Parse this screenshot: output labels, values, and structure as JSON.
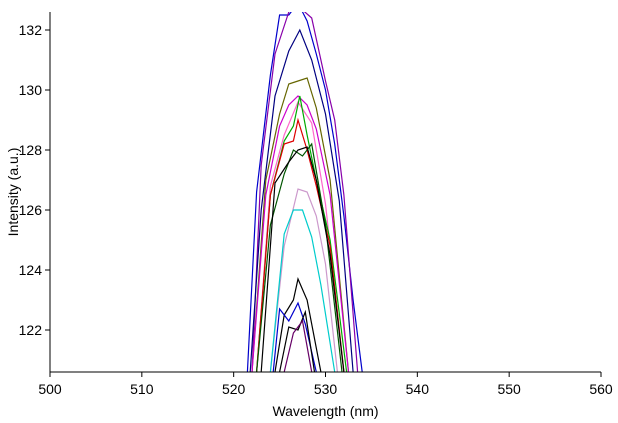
{
  "chart_data": {
    "type": "line",
    "title": "",
    "xlabel": "Wavelength (nm)",
    "ylabel": "Intensity (a.u.)",
    "xlim": [
      500,
      560
    ],
    "ylim": [
      120.6,
      132.6
    ],
    "xticks": [
      500,
      510,
      520,
      530,
      540,
      550,
      560
    ],
    "yticks": [
      122,
      124,
      126,
      128,
      130,
      132
    ],
    "grid": false,
    "legend": "none",
    "series": [
      {
        "color": "#0000cc",
        "x": [
          521.5,
          522.5,
          524.0,
          525.0,
          526.0,
          527.0,
          528.0,
          529.0,
          530.0,
          531.0,
          532.0,
          533.0,
          534.0
        ],
        "y": [
          120.6,
          126.6,
          130.5,
          132.5,
          132.5,
          132.9,
          132.3,
          131.2,
          130.0,
          128.2,
          125.8,
          123.0,
          120.6
        ]
      },
      {
        "color": "#8800aa",
        "x": [
          522.0,
          523.0,
          524.5,
          526.0,
          527.0,
          528.5,
          530.0,
          531.0,
          532.0,
          533.5
        ],
        "y": [
          120.6,
          127.5,
          131.2,
          132.6,
          132.8,
          132.4,
          130.3,
          129.0,
          126.5,
          120.6
        ]
      },
      {
        "color": "#000080",
        "x": [
          521.8,
          523.0,
          524.5,
          526.0,
          527.2,
          528.5,
          530.0,
          531.5,
          533.0
        ],
        "y": [
          120.6,
          126.0,
          129.8,
          131.3,
          132.0,
          131.0,
          129.2,
          126.3,
          120.6
        ]
      },
      {
        "color": "#666600",
        "x": [
          522.0,
          523.5,
          525.0,
          526.0,
          527.0,
          528.0,
          529.0,
          530.5,
          532.5
        ],
        "y": [
          120.6,
          127.0,
          129.2,
          130.2,
          130.3,
          130.4,
          129.4,
          127.0,
          120.6
        ]
      },
      {
        "color": "#cc00cc",
        "x": [
          522.0,
          523.5,
          525.0,
          526.0,
          527.0,
          528.0,
          529.0,
          530.5,
          532.5
        ],
        "y": [
          120.6,
          126.5,
          128.8,
          129.5,
          129.8,
          129.5,
          128.7,
          126.5,
          120.6
        ]
      },
      {
        "color": "#ff66cc",
        "x": [
          522.5,
          524.0,
          525.5,
          527.0,
          528.5,
          530.0,
          532.0
        ],
        "y": [
          120.6,
          126.8,
          128.5,
          129.6,
          128.9,
          126.2,
          120.6
        ]
      },
      {
        "color": "#00aa00",
        "x": [
          522.5,
          524.0,
          525.5,
          526.5,
          527.2,
          528.0,
          529.0,
          530.5,
          532.3
        ],
        "y": [
          120.6,
          126.5,
          128.3,
          128.8,
          129.8,
          128.5,
          127.0,
          125.0,
          120.6
        ]
      },
      {
        "color": "#dd0000",
        "x": [
          522.5,
          524.0,
          525.5,
          526.5,
          527.0,
          528.0,
          529.0,
          530.5,
          532.0
        ],
        "y": [
          120.6,
          126.5,
          128.2,
          128.3,
          129.0,
          128.0,
          126.8,
          124.8,
          120.6
        ]
      },
      {
        "color": "#005500",
        "x": [
          522.5,
          524.0,
          525.5,
          526.5,
          527.5,
          528.5,
          530.0,
          531.8
        ],
        "y": [
          120.6,
          125.5,
          127.2,
          128.0,
          127.8,
          128.2,
          125.5,
          120.6
        ]
      },
      {
        "color": "#000000",
        "x": [
          523.0,
          524.5,
          526.0,
          527.0,
          528.0,
          529.0,
          530.5,
          532.0
        ],
        "y": [
          120.6,
          126.9,
          127.6,
          128.0,
          128.1,
          127.0,
          124.5,
          120.6
        ]
      },
      {
        "color": "#cc99cc",
        "x": [
          524.0,
          525.5,
          527.0,
          528.0,
          529.0,
          530.0,
          531.3
        ],
        "y": [
          120.6,
          124.8,
          126.7,
          126.6,
          125.8,
          124.2,
          120.6
        ]
      },
      {
        "color": "#00cccc",
        "x": [
          524.0,
          525.5,
          526.5,
          527.5,
          528.5,
          529.5,
          531.0
        ],
        "y": [
          120.6,
          125.2,
          126.0,
          126.0,
          125.1,
          123.5,
          120.6
        ]
      },
      {
        "color": "#000000",
        "x": [
          524.5,
          525.5,
          526.5,
          527.0,
          528.0,
          529.5
        ],
        "y": [
          120.6,
          122.5,
          123.0,
          123.7,
          123.0,
          120.6
        ]
      },
      {
        "color": "#0000cc",
        "x": [
          524.3,
          525.0,
          526.0,
          527.0,
          527.8,
          529.0
        ],
        "y": [
          120.6,
          122.7,
          122.3,
          122.9,
          122.2,
          120.6
        ]
      },
      {
        "color": "#000000",
        "x": [
          525.0,
          526.0,
          527.0,
          527.8,
          528.8
        ],
        "y": [
          120.6,
          122.1,
          122.0,
          122.6,
          120.6
        ]
      },
      {
        "color": "#660066",
        "x": [
          525.5,
          526.5,
          527.5,
          528.5
        ],
        "y": [
          120.6,
          121.9,
          122.3,
          120.6
        ]
      }
    ]
  }
}
